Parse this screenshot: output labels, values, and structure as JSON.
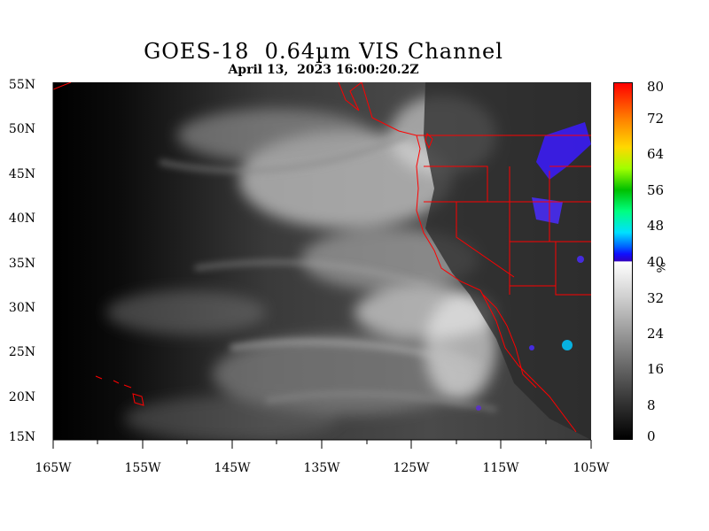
{
  "title": "GOES-18  0.64µm VIS Channel",
  "subtitle": "April 13,  2023 16:00:20.2Z",
  "lat_labels": [
    "55N",
    "50N",
    "45N",
    "40N",
    "35N",
    "30N",
    "25N",
    "20N",
    "15N"
  ],
  "lon_labels": [
    "165W",
    "155W",
    "145W",
    "135W",
    "125W",
    "115W",
    "105W"
  ],
  "colorbar": {
    "ticks": [
      "80",
      "72",
      "64",
      "56",
      "48",
      "40",
      "32",
      "24",
      "16",
      "8",
      "0"
    ],
    "unit": "%",
    "grayscale_range": [
      0,
      40
    ],
    "color_range": [
      40,
      80
    ]
  },
  "map": {
    "lat_range": [
      15,
      55
    ],
    "lon_range": [
      -165,
      -105
    ],
    "boundary_color": "#ff0000",
    "imagery": "grayscale visible satellite imagery with cloud bands"
  }
}
